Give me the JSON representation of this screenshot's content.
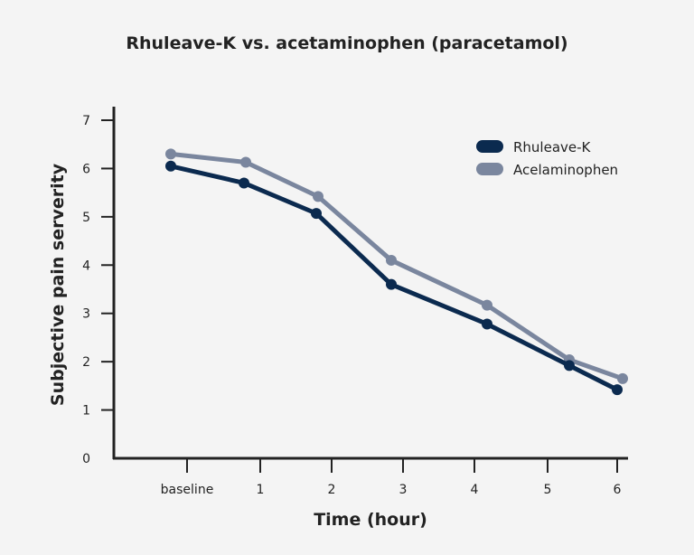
{
  "chart_data": {
    "type": "line",
    "title": "Rhuleave-K vs. acetaminophen (paracetamol)",
    "xlabel": "Time (hour)",
    "ylabel": "Subjective pain serverity",
    "categories": [
      "baseline",
      "1",
      "2",
      "3",
      "4",
      "5",
      "6"
    ],
    "yticks": [
      "0",
      "1",
      "2",
      "3",
      "4",
      "5",
      "6",
      "7"
    ],
    "ylim": [
      0,
      7
    ],
    "grid": false,
    "legend_position": "top-right",
    "series": [
      {
        "name": "Rhuleave-K",
        "color": "#0b2a4f",
        "values": [
          6.05,
          5.7,
          5.07,
          3.6,
          2.78,
          1.92,
          1.42
        ]
      },
      {
        "name": "Acelaminophen",
        "color": "#7a869e",
        "values": [
          6.3,
          6.13,
          5.42,
          4.1,
          3.17,
          2.04,
          1.65
        ]
      }
    ]
  }
}
